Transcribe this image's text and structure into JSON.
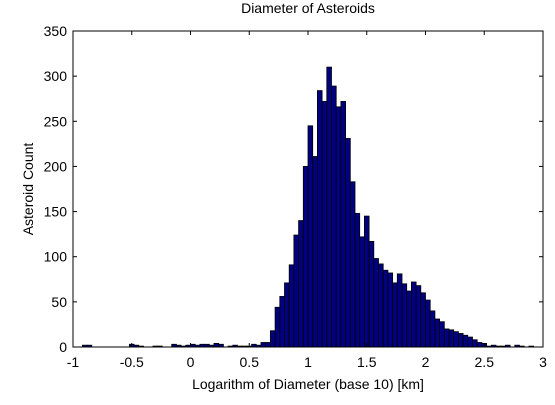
{
  "chart_data": {
    "type": "bar",
    "title": "Diameter of Asteroids",
    "xlabel": "Logarithm of Diameter (base 10) [km]",
    "ylabel": "Asteroid Count",
    "xlim": [
      -1,
      3
    ],
    "ylim": [
      0,
      350
    ],
    "xticks": [
      -1,
      -0.5,
      0,
      0.5,
      1,
      1.5,
      2,
      2.5,
      3
    ],
    "xtick_labels": [
      "-1",
      "-0.5",
      "0",
      "0.5",
      "1",
      "1.5",
      "2",
      "2.5",
      "3"
    ],
    "yticks": [
      0,
      50,
      100,
      150,
      200,
      250,
      300,
      350
    ],
    "ytick_labels": [
      "0",
      "50",
      "100",
      "150",
      "200",
      "250",
      "300",
      "350"
    ],
    "bin_width": 0.04,
    "grid": false,
    "bar_color": "#000080",
    "bar_edge_color": "#000000",
    "bins": [
      {
        "x": -0.9,
        "y": 2
      },
      {
        "x": -0.86,
        "y": 2
      },
      {
        "x": -0.5,
        "y": 3
      },
      {
        "x": -0.46,
        "y": 2
      },
      {
        "x": -0.42,
        "y": 1
      },
      {
        "x": -0.3,
        "y": 1
      },
      {
        "x": -0.26,
        "y": 1
      },
      {
        "x": -0.14,
        "y": 3
      },
      {
        "x": -0.1,
        "y": 2
      },
      {
        "x": -0.06,
        "y": 1
      },
      {
        "x": -0.02,
        "y": 2
      },
      {
        "x": 0.02,
        "y": 3
      },
      {
        "x": 0.06,
        "y": 2
      },
      {
        "x": 0.1,
        "y": 3
      },
      {
        "x": 0.14,
        "y": 3
      },
      {
        "x": 0.18,
        "y": 2
      },
      {
        "x": 0.22,
        "y": 4
      },
      {
        "x": 0.26,
        "y": 3
      },
      {
        "x": 0.34,
        "y": 1
      },
      {
        "x": 0.38,
        "y": 2
      },
      {
        "x": 0.42,
        "y": 1
      },
      {
        "x": 0.46,
        "y": 1
      },
      {
        "x": 0.5,
        "y": 1
      },
      {
        "x": 0.54,
        "y": 3
      },
      {
        "x": 0.58,
        "y": 2
      },
      {
        "x": 0.62,
        "y": 5
      },
      {
        "x": 0.66,
        "y": 5
      },
      {
        "x": 0.7,
        "y": 18
      },
      {
        "x": 0.74,
        "y": 44
      },
      {
        "x": 0.78,
        "y": 56
      },
      {
        "x": 0.82,
        "y": 71
      },
      {
        "x": 0.86,
        "y": 91
      },
      {
        "x": 0.9,
        "y": 124
      },
      {
        "x": 0.94,
        "y": 140
      },
      {
        "x": 0.98,
        "y": 200
      },
      {
        "x": 1.02,
        "y": 245
      },
      {
        "x": 1.06,
        "y": 211
      },
      {
        "x": 1.1,
        "y": 284
      },
      {
        "x": 1.14,
        "y": 272
      },
      {
        "x": 1.18,
        "y": 310
      },
      {
        "x": 1.22,
        "y": 289
      },
      {
        "x": 1.26,
        "y": 266
      },
      {
        "x": 1.3,
        "y": 272
      },
      {
        "x": 1.34,
        "y": 231
      },
      {
        "x": 1.38,
        "y": 183
      },
      {
        "x": 1.42,
        "y": 148
      },
      {
        "x": 1.46,
        "y": 122
      },
      {
        "x": 1.5,
        "y": 145
      },
      {
        "x": 1.54,
        "y": 117
      },
      {
        "x": 1.58,
        "y": 98
      },
      {
        "x": 1.62,
        "y": 92
      },
      {
        "x": 1.66,
        "y": 85
      },
      {
        "x": 1.7,
        "y": 82
      },
      {
        "x": 1.74,
        "y": 71
      },
      {
        "x": 1.78,
        "y": 81
      },
      {
        "x": 1.82,
        "y": 70
      },
      {
        "x": 1.86,
        "y": 62
      },
      {
        "x": 1.9,
        "y": 72
      },
      {
        "x": 1.94,
        "y": 68
      },
      {
        "x": 1.98,
        "y": 60
      },
      {
        "x": 2.02,
        "y": 52
      },
      {
        "x": 2.06,
        "y": 40
      },
      {
        "x": 2.1,
        "y": 31
      },
      {
        "x": 2.14,
        "y": 28
      },
      {
        "x": 2.18,
        "y": 20
      },
      {
        "x": 2.22,
        "y": 19
      },
      {
        "x": 2.26,
        "y": 17
      },
      {
        "x": 2.3,
        "y": 15
      },
      {
        "x": 2.34,
        "y": 13
      },
      {
        "x": 2.38,
        "y": 11
      },
      {
        "x": 2.42,
        "y": 8
      },
      {
        "x": 2.46,
        "y": 5
      },
      {
        "x": 2.5,
        "y": 4
      },
      {
        "x": 2.54,
        "y": 1
      },
      {
        "x": 2.58,
        "y": 2
      },
      {
        "x": 2.62,
        "y": 1
      },
      {
        "x": 2.66,
        "y": 1
      },
      {
        "x": 2.7,
        "y": 2
      },
      {
        "x": 2.78,
        "y": 2
      },
      {
        "x": 2.82,
        "y": 1
      },
      {
        "x": 2.9,
        "y": 1
      }
    ]
  }
}
